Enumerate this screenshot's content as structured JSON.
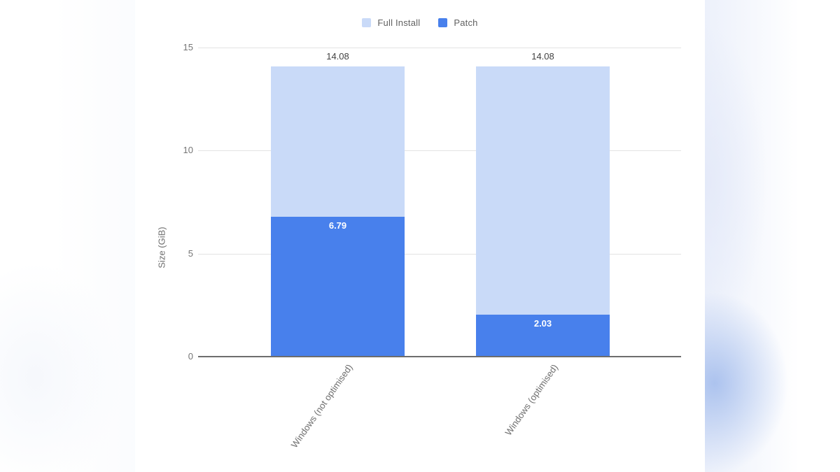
{
  "chart_data": {
    "type": "bar",
    "variant": "overlaid-columns",
    "categories": [
      "Windows (not optimised)",
      "Windows (optimised)"
    ],
    "series": [
      {
        "name": "Full Install",
        "color": "#c9daf8",
        "values": [
          14.08,
          14.08
        ],
        "annotation_position": "above",
        "annotation_color": "#424242"
      },
      {
        "name": "Patch",
        "color": "#4880ec",
        "values": [
          6.79,
          2.03
        ],
        "annotation_position": "inside-top",
        "annotation_color": "#ffffff"
      }
    ],
    "title": "",
    "xlabel": "",
    "ylabel": "Size (GiB)",
    "ylim": [
      0,
      15
    ],
    "yticks": [
      0,
      5,
      10,
      15
    ],
    "grid": true,
    "legend_position": "top"
  },
  "colors": {
    "gridline": "#e3e3e3",
    "axis_line": "#6d6d6d",
    "tick_text": "#757575",
    "category_text": "#6e6e6e",
    "background": "#ffffff"
  }
}
